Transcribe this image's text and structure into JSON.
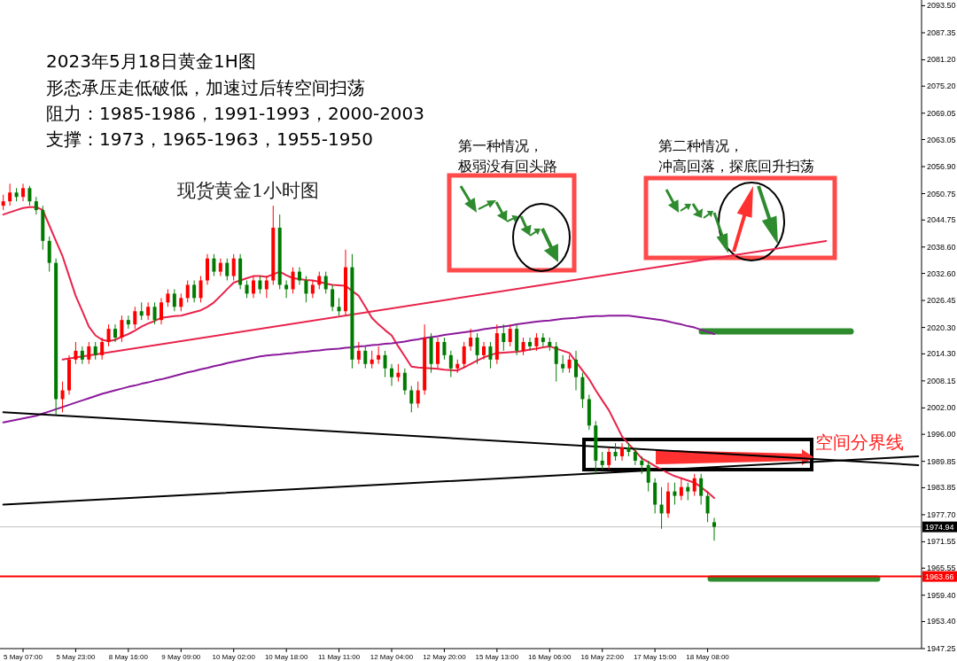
{
  "chart_data": {
    "type": "candlestick",
    "title": "2023年5月18日黄金1H图",
    "annotations": [
      "形态承压走低破低，加速过后转空间扫荡",
      "阻力：1985-1986，1991-1993，2000-2003",
      "支撑：1973，1965-1963，1955-1950",
      "现货黄金1小时图",
      "第一种情况，",
      "极弱没有回头路",
      "第二种情况，",
      "冲高回落，探底回升扫荡",
      "空间分界线"
    ],
    "categories": [
      null,
      null,
      null,
      "5 May 07:00",
      null,
      null,
      null,
      null,
      null,
      null,
      null,
      "5 May 23:00",
      null,
      null,
      null,
      null,
      null,
      null,
      null,
      "8 May 16:00",
      null,
      null,
      null,
      null,
      null,
      null,
      null,
      "9 May 09:00",
      null,
      null,
      null,
      null,
      null,
      null,
      null,
      "10 May 02:00",
      null,
      null,
      null,
      null,
      null,
      null,
      null,
      "10 May 18:00",
      null,
      null,
      null,
      null,
      null,
      null,
      null,
      "11 May 11:00",
      null,
      null,
      null,
      null,
      null,
      null,
      null,
      "12 May 04:00",
      null,
      null,
      null,
      null,
      null,
      null,
      null,
      "12 May 20:00",
      null,
      null,
      null,
      null,
      null,
      null,
      null,
      "15 May 13:00",
      null,
      null,
      null,
      null,
      null,
      null,
      null,
      "16 May 06:00",
      null,
      null,
      null,
      null,
      null,
      null,
      null,
      "16 May 22:00",
      null,
      null,
      null,
      null,
      null,
      null,
      null,
      "17 May 15:00",
      null,
      null,
      null,
      null,
      null,
      null,
      null,
      "18 May 08:00",
      null,
      null,
      null,
      null,
      null,
      null,
      null,
      null,
      null,
      null,
      null,
      null,
      null,
      null,
      null,
      null,
      null,
      null,
      null,
      null,
      null,
      null,
      null,
      null,
      null,
      null,
      null,
      null,
      null,
      null,
      null,
      null
    ],
    "ohlc": [
      [
        2048,
        2050.5,
        2047,
        2049
      ],
      [
        2049,
        2053,
        2048,
        2051
      ],
      [
        2051,
        2052,
        2049,
        2050
      ],
      [
        2050,
        2053,
        2049,
        2052
      ],
      [
        2052,
        2052.5,
        2048,
        2049
      ],
      [
        2049,
        2050,
        2046,
        2047
      ],
      [
        2047,
        2048,
        2038,
        2040
      ],
      [
        2040,
        2041,
        2033,
        2035
      ],
      [
        2035,
        2036,
        2000.5,
        2004
      ],
      [
        2004,
        2008,
        2001,
        2006
      ],
      [
        2006,
        2014,
        2005,
        2013
      ],
      [
        2013,
        2017,
        2012,
        2015
      ],
      [
        2015,
        2016,
        2012,
        2013
      ],
      [
        2013,
        2017,
        2012,
        2016
      ],
      [
        2016,
        2017,
        2013,
        2014
      ],
      [
        2014,
        2018,
        2013,
        2017
      ],
      [
        2017,
        2021,
        2016,
        2020
      ],
      [
        2020,
        2021,
        2017,
        2018
      ],
      [
        2018,
        2023,
        2017,
        2022
      ],
      [
        2022,
        2023,
        2020,
        2021
      ],
      [
        2021,
        2025,
        2020,
        2024
      ],
      [
        2024,
        2026,
        2022,
        2023
      ],
      [
        2023,
        2026,
        2022,
        2025
      ],
      [
        2025,
        2026,
        2021,
        2022
      ],
      [
        2022,
        2027,
        2021,
        2026
      ],
      [
        2026,
        2029,
        2025,
        2028
      ],
      [
        2028,
        2029,
        2024,
        2025
      ],
      [
        2025,
        2028,
        2024,
        2027
      ],
      [
        2027,
        2031,
        2026,
        2030
      ],
      [
        2030,
        2031,
        2026,
        2027
      ],
      [
        2027,
        2032,
        2026,
        2031
      ],
      [
        2031,
        2037,
        2030,
        2036
      ],
      [
        2036,
        2037,
        2032,
        2033
      ],
      [
        2033,
        2036,
        2032,
        2035
      ],
      [
        2035,
        2036,
        2031,
        2032
      ],
      [
        2032,
        2037,
        2031,
        2036
      ],
      [
        2036,
        2037,
        2029,
        2030
      ],
      [
        2030,
        2031,
        2027,
        2028
      ],
      [
        2028,
        2032,
        2027,
        2031
      ],
      [
        2031,
        2032,
        2028,
        2029
      ],
      [
        2029,
        2032,
        2027,
        2031
      ],
      [
        2031,
        2048,
        2030,
        2043
      ],
      [
        2043,
        2046,
        2029,
        2030
      ],
      [
        2030,
        2031,
        2027,
        2029
      ],
      [
        2029,
        2034,
        2028,
        2033
      ],
      [
        2033,
        2034,
        2030,
        2031
      ],
      [
        2031,
        2032,
        2026,
        2028
      ],
      [
        2028,
        2031,
        2027,
        2030
      ],
      [
        2030,
        2033,
        2029,
        2032
      ],
      [
        2032,
        2033,
        2028,
        2029
      ],
      [
        2029,
        2030,
        2024,
        2025
      ],
      [
        2025,
        2027,
        2023,
        2024
      ],
      [
        2024,
        2038,
        2023,
        2034
      ],
      [
        2034,
        2037,
        2011,
        2013
      ],
      [
        2013,
        2017,
        2012,
        2015
      ],
      [
        2015,
        2016,
        2011,
        2012
      ],
      [
        2012,
        2015,
        2011,
        2013
      ],
      [
        2013,
        2016,
        2012,
        2014
      ],
      [
        2014,
        2015,
        2009,
        2011
      ],
      [
        2011,
        2012,
        2007,
        2009
      ],
      [
        2009,
        2012,
        2008,
        2010
      ],
      [
        2010,
        2011,
        2005,
        2006
      ],
      [
        2006,
        2007,
        2001,
        2003
      ],
      [
        2003,
        2008,
        2002,
        2006
      ],
      [
        2006,
        2021,
        2005,
        2018
      ],
      [
        2018,
        2019,
        2010,
        2012
      ],
      [
        2012,
        2018,
        2011,
        2017
      ],
      [
        2017,
        2018,
        2013,
        2014
      ],
      [
        2014,
        2015,
        2009,
        2011
      ],
      [
        2011,
        2013,
        2010,
        2012
      ],
      [
        2012,
        2017,
        2011,
        2016
      ],
      [
        2016,
        2020,
        2015,
        2018
      ],
      [
        2018,
        2019,
        2012,
        2014
      ],
      [
        2014,
        2017,
        2013,
        2016
      ],
      [
        2016,
        2017,
        2011,
        2013
      ],
      [
        2013,
        2021,
        2012,
        2019
      ],
      [
        2019,
        2021,
        2015,
        2017
      ],
      [
        2017,
        2021,
        2016,
        2020
      ],
      [
        2020,
        2021,
        2014,
        2015
      ],
      [
        2015,
        2018,
        2014,
        2017
      ],
      [
        2017,
        2018,
        2015,
        2016
      ],
      [
        2016,
        2019,
        2015,
        2018
      ],
      [
        2018,
        2019,
        2016,
        2017
      ],
      [
        2017,
        2018,
        2015,
        2016
      ],
      [
        2016,
        2017,
        2008,
        2012
      ],
      [
        2012,
        2014,
        2010,
        2011
      ],
      [
        2011,
        2014,
        2010,
        2013
      ],
      [
        2013,
        2015,
        2006,
        2009
      ],
      [
        2009,
        2010,
        2002,
        2004
      ],
      [
        2004,
        2005,
        1997,
        1998
      ],
      [
        1998,
        1999,
        1987,
        1990
      ],
      [
        1990,
        1992,
        1988,
        1989
      ],
      [
        1989,
        1993,
        1988,
        1992
      ],
      [
        1992,
        1994,
        1990,
        1991
      ],
      [
        1991,
        1994,
        1990,
        1993
      ],
      [
        1993,
        1994,
        1991,
        1992
      ],
      [
        1992,
        1993,
        1989,
        1990
      ],
      [
        1990,
        1991,
        1987,
        1989
      ],
      [
        1989,
        1990,
        1983,
        1985
      ],
      [
        1985,
        1986,
        1978,
        1980
      ],
      [
        1980,
        1984,
        1974.5,
        1978
      ],
      [
        1978,
        1985,
        1977,
        1983
      ],
      [
        1983,
        1985,
        1980,
        1982
      ],
      [
        1982,
        1986,
        1981,
        1984
      ],
      [
        1984,
        1985,
        1981,
        1983
      ],
      [
        1983,
        1987,
        1982,
        1986
      ],
      [
        1986,
        1987,
        1980,
        1982
      ],
      [
        1982,
        1983,
        1976,
        1978
      ],
      [
        1976,
        1977,
        1971.8,
        1974.94
      ],
      null,
      null,
      null,
      null,
      null,
      null,
      null,
      null,
      null,
      null,
      null,
      null,
      null,
      null,
      null,
      null,
      null,
      null,
      null,
      null,
      null,
      null,
      null,
      null,
      null,
      null,
      null,
      null,
      null,
      null,
      null
    ],
    "series": [
      {
        "type": "line",
        "color": "#e8234a",
        "values": [
          2046,
          2046.5,
          2047,
          2047.5,
          2047.7,
          2047.7,
          2047,
          2043.5,
          2040,
          2036.5,
          2032,
          2027.5,
          2024,
          2020.5,
          2018.5,
          2017.5,
          2017.2,
          2017.5,
          2018.2,
          2018.8,
          2019.6,
          2020.5,
          2021.2,
          2021.8,
          2022.5,
          2022.7,
          2022.9,
          2023,
          2023.4,
          2023.8,
          2024.2,
          2025,
          2026,
          2027.5,
          2029,
          2030.5,
          2031,
          2031.5,
          2032,
          2032,
          2031.8,
          2032.4,
          2033,
          2032.2,
          2031.5,
          2031.3,
          2031.1,
          2031,
          2030.7,
          2030.3,
          2030,
          2029.9,
          2029.8,
          2028.6,
          2027.5,
          2025,
          2022.5,
          2021,
          2019.7,
          2018.5,
          2016,
          2013.7,
          2011.4,
          2011.2,
          2011.1,
          2011,
          2010.9,
          2010.7,
          2010.6,
          2010.5,
          2011.2,
          2012,
          2012.8,
          2013.5,
          2014,
          2014.5,
          2014.6,
          2014.7,
          2014.8,
          2015,
          2015.3,
          2015.5,
          2015.8,
          2016,
          2015.5,
          2015,
          2014.5,
          2012.5,
          2010.5,
          2008.5,
          2006,
          2003.7,
          2001.5,
          1998.5,
          1995.5,
          1993.8,
          1992.2,
          1990.5,
          1989.7,
          1988.8,
          1988,
          1987.2,
          1986.5,
          1986,
          1985.5,
          1985,
          1984,
          1982.8,
          1981.5,
          null,
          null,
          null,
          null,
          null,
          null,
          null,
          null,
          null,
          null,
          null,
          null,
          null,
          null,
          null,
          null,
          null,
          null,
          null,
          null,
          null,
          null,
          null,
          null,
          null,
          null,
          null,
          null,
          null,
          null,
          null
        ]
      },
      {
        "type": "line",
        "color": "#8b1a9b",
        "values": [
          1998.7,
          1999,
          1999.3,
          1999.6,
          1999.9,
          2000.2,
          2000.7,
          2001.2,
          2001.7,
          2002.2,
          2002.7,
          2003.2,
          2003.7,
          2004.2,
          2004.7,
          2005.2,
          2005.6,
          2006,
          2006.4,
          2006.8,
          2007.1,
          2007.5,
          2007.8,
          2008.2,
          2008.5,
          2008.9,
          2009.3,
          2009.7,
          2010.1,
          2010.4,
          2010.8,
          2011.1,
          2011.5,
          2011.8,
          2012.2,
          2012.5,
          2012.8,
          2013.1,
          2013.4,
          2013.7,
          2013.9,
          2014.1,
          2014.2,
          2014.4,
          2014.5,
          2014.7,
          2014.8,
          2015,
          2015.1,
          2015.3,
          2015.4,
          2015.5,
          2015.7,
          2015.8,
          2016,
          2016.1,
          2016.3,
          2016.4,
          2016.6,
          2016.7,
          2016.9,
          2017.1,
          2017.4,
          2017.6,
          2017.9,
          2018.1,
          2018.3,
          2018.6,
          2018.8,
          2019,
          2019.2,
          2019.4,
          2019.6,
          2019.9,
          2020.1,
          2020.3,
          2020.5,
          2020.7,
          2021,
          2021.2,
          2021.4,
          2021.6,
          2021.8,
          2021.9,
          2022.1,
          2022.3,
          2022.4,
          2022.5,
          2022.7,
          2022.8,
          2022.9,
          2022.9,
          2023,
          2023,
          2023,
          2023,
          2022.8,
          2022.6,
          2022.4,
          2022.2,
          2022,
          2021.7,
          2021.3,
          2021,
          2020.6,
          2020.3,
          2019.8,
          2019.3,
          2018.8,
          null,
          null,
          null,
          null,
          null,
          null,
          null,
          null,
          null,
          null,
          null,
          null,
          null,
          null,
          null,
          null,
          null,
          null,
          null,
          null,
          null,
          null,
          null,
          null,
          null,
          null,
          null,
          null,
          null,
          null,
          null
        ]
      },
      {
        "type": "line",
        "color": "#e8234a",
        "values": [
          null,
          null,
          null,
          null,
          null,
          null,
          null,
          null,
          null,
          2013,
          null,
          null,
          null,
          null,
          null,
          null,
          null,
          null,
          null,
          null,
          null,
          null,
          null,
          null,
          null,
          null,
          null,
          null,
          null,
          null,
          null,
          null,
          null,
          null,
          null,
          null,
          null,
          null,
          null,
          null,
          null,
          null,
          null,
          null,
          null,
          null,
          null,
          null,
          null,
          null,
          null,
          null,
          null,
          null,
          null,
          null,
          null,
          null,
          null,
          null,
          null,
          null,
          null,
          null,
          null,
          null,
          null,
          null,
          null,
          null,
          null,
          null,
          null,
          null,
          null,
          null,
          null,
          null,
          null,
          null,
          null,
          null,
          null,
          null,
          null,
          null,
          null,
          null,
          null,
          null,
          null,
          null,
          null,
          null,
          null,
          null,
          null,
          null,
          null,
          null,
          null,
          null,
          null,
          null,
          null,
          null,
          null,
          null,
          null,
          null,
          null,
          null,
          null,
          null,
          null,
          null,
          null,
          null,
          null,
          null,
          null,
          null,
          null,
          null,
          null,
          2040,
          null,
          null,
          null,
          null,
          null,
          null,
          null,
          null,
          null,
          null,
          null,
          null,
          null,
          null
        ]
      },
      {
        "type": "line",
        "color": "#000000",
        "values": [
          2001,
          null,
          null,
          null,
          null,
          null,
          null,
          null,
          null,
          null,
          null,
          null,
          null,
          null,
          null,
          null,
          null,
          null,
          null,
          null,
          null,
          null,
          null,
          null,
          null,
          null,
          null,
          null,
          null,
          null,
          null,
          null,
          null,
          null,
          null,
          null,
          null,
          null,
          null,
          null,
          null,
          null,
          null,
          null,
          null,
          null,
          null,
          null,
          null,
          null,
          null,
          null,
          null,
          null,
          null,
          null,
          null,
          null,
          null,
          null,
          null,
          null,
          null,
          null,
          null,
          null,
          null,
          null,
          null,
          null,
          null,
          null,
          null,
          null,
          null,
          null,
          null,
          null,
          null,
          null,
          null,
          null,
          null,
          null,
          null,
          null,
          null,
          null,
          null,
          null,
          null,
          null,
          null,
          null,
          null,
          null,
          null,
          null,
          null,
          null,
          null,
          null,
          null,
          null,
          null,
          null,
          null,
          null,
          null,
          null,
          null,
          null,
          null,
          null,
          null,
          null,
          null,
          null,
          null,
          null,
          null,
          null,
          null,
          null,
          null,
          null,
          null,
          null,
          null,
          null,
          null,
          null,
          null,
          null,
          null,
          null,
          null,
          null,
          null,
          1989
        ]
      },
      {
        "type": "line",
        "color": "#000000",
        "values": [
          1980,
          null,
          null,
          null,
          null,
          null,
          null,
          null,
          null,
          null,
          null,
          null,
          null,
          null,
          null,
          null,
          null,
          null,
          null,
          null,
          null,
          null,
          null,
          null,
          null,
          null,
          null,
          null,
          null,
          null,
          null,
          null,
          null,
          null,
          null,
          null,
          null,
          null,
          null,
          null,
          null,
          null,
          null,
          null,
          null,
          null,
          null,
          null,
          null,
          null,
          null,
          null,
          null,
          null,
          null,
          null,
          null,
          null,
          null,
          null,
          null,
          null,
          null,
          null,
          null,
          null,
          null,
          null,
          null,
          null,
          null,
          null,
          null,
          null,
          null,
          null,
          null,
          null,
          null,
          null,
          null,
          null,
          null,
          null,
          null,
          null,
          null,
          null,
          null,
          null,
          null,
          null,
          null,
          null,
          null,
          null,
          null,
          null,
          null,
          null,
          null,
          null,
          null,
          null,
          null,
          null,
          null,
          null,
          null,
          null,
          null,
          null,
          null,
          null,
          null,
          null,
          null,
          null,
          null,
          null,
          null,
          null,
          null,
          null,
          null,
          null,
          null,
          null,
          null,
          null,
          null,
          null,
          null,
          null,
          null,
          null,
          null,
          null,
          null,
          1991
        ]
      }
    ],
    "ylim": [
      1947.25,
      2094.8
    ],
    "yticks": [
      {
        "value": 2093.5,
        "label": "2093.50"
      },
      2087.35,
      {
        "value": 2081.2,
        "label": "2081.20"
      },
      {
        "value": 2075.2,
        "label": "2075.20"
      },
      2069.05,
      2063.05,
      {
        "value": 2056.9,
        "label": "2056.90"
      },
      2050.75,
      2044.75,
      {
        "value": 2038.6,
        "label": "2038.60"
      },
      {
        "value": 2032.6,
        "label": "2032.60"
      },
      2026.45,
      {
        "value": 2020.3,
        "label": "2020.30"
      },
      {
        "value": 2014.3,
        "label": "2014.30"
      },
      2008.15,
      {
        "value": 2002,
        "label": "2002.00"
      },
      {
        "value": 1996,
        "label": "1996.00"
      },
      1989.85,
      1983.85,
      {
        "value": 1977.7,
        "label": "1977.70"
      },
      1971.55,
      1965.55,
      {
        "value": 1959.4,
        "label": "1959.40"
      },
      {
        "value": 1953.4,
        "label": "1953.40"
      },
      1947.25
    ],
    "ref_lines": [
      {
        "axis": "y",
        "value": 1974.94,
        "label": "1974.94",
        "color": "#c0c0c0"
      },
      {
        "axis": "y",
        "value": 1963.66,
        "label": "1963.66",
        "color": "#ff0000"
      }
    ]
  }
}
